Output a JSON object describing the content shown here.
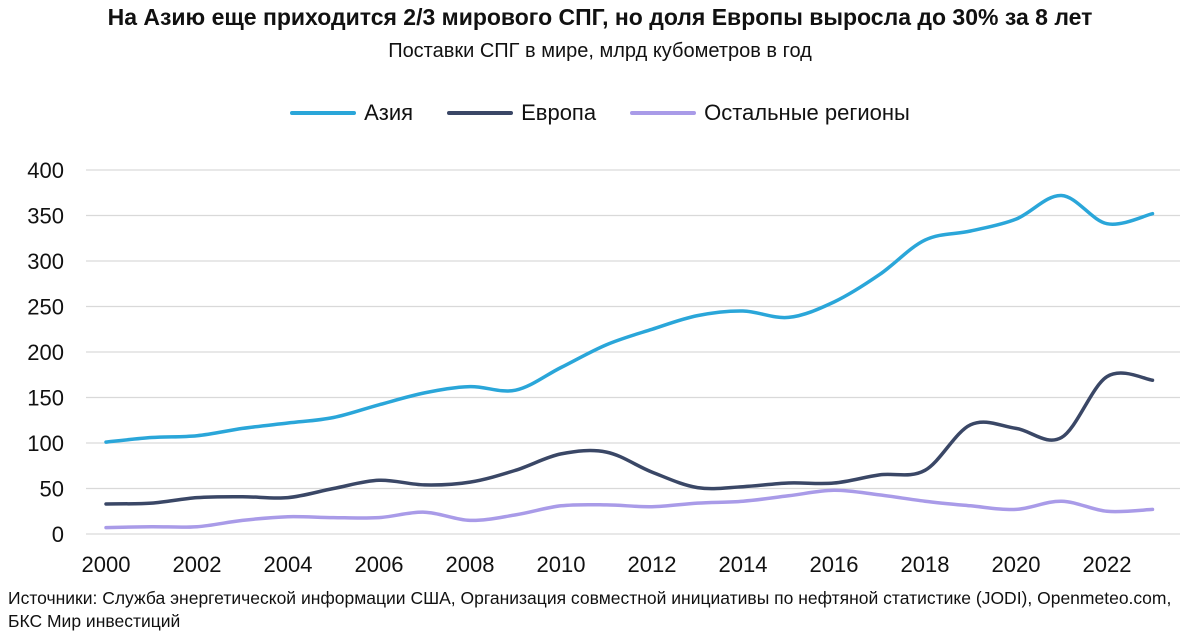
{
  "title": "На Азию еще приходится 2/3 мирового СПГ, но доля Европы выросла до 30% за 8 лет",
  "subtitle": "Поставки СПГ в мире, млрд кубометров в год",
  "source": "Источники: Служба энергетической информации США, Организация совместной инициативы по нефтяной статистике (JODI), Openmeteo.com, БКС Мир инвестиций",
  "chart_data": {
    "type": "line",
    "x": [
      2000,
      2001,
      2002,
      2003,
      2004,
      2005,
      2006,
      2007,
      2008,
      2009,
      2010,
      2011,
      2012,
      2013,
      2014,
      2015,
      2016,
      2017,
      2018,
      2019,
      2020,
      2021,
      2022,
      2023
    ],
    "xticks": [
      "2000",
      "2002",
      "2004",
      "2006",
      "2008",
      "2010",
      "2012",
      "2014",
      "2016",
      "2018",
      "2020",
      "2022"
    ],
    "yticks": [
      "0",
      "50",
      "100",
      "150",
      "200",
      "250",
      "300",
      "350",
      "400"
    ],
    "ylim": [
      0,
      400
    ],
    "xlim": [
      2000,
      2023
    ],
    "grid": true,
    "legend_position": "top-center",
    "series": [
      {
        "name": "Азия",
        "color": "#2aa6d9",
        "values": [
          101,
          106,
          108,
          116,
          122,
          128,
          142,
          155,
          162,
          158,
          183,
          208,
          225,
          240,
          245,
          238,
          255,
          285,
          323,
          333,
          346,
          372,
          341,
          352
        ]
      },
      {
        "name": "Европа",
        "color": "#3a4766",
        "values": [
          33,
          34,
          40,
          41,
          40,
          50,
          59,
          54,
          57,
          70,
          88,
          90,
          68,
          51,
          52,
          56,
          56,
          65,
          70,
          120,
          116,
          106,
          173,
          169
        ]
      },
      {
        "name": "Остальные регионы",
        "color": "#a99be8",
        "values": [
          7,
          8,
          8,
          15,
          19,
          18,
          18,
          24,
          15,
          21,
          31,
          32,
          30,
          34,
          36,
          42,
          48,
          43,
          36,
          31,
          27,
          36,
          25,
          27
        ]
      }
    ]
  }
}
